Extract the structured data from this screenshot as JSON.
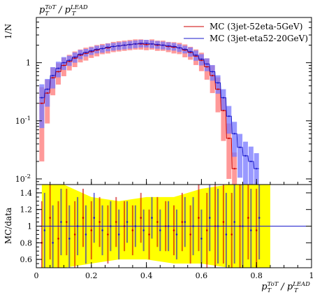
{
  "chart_data": [
    {
      "type": "line",
      "title": "p_T^ToT / p_T^LEAD",
      "ylabel": "1/N",
      "yscale": "log",
      "ylim": [
        0.008,
        6
      ],
      "xlim": [
        0,
        1
      ],
      "y_tick_labels": [
        "10^-2",
        "10^-1",
        "1"
      ],
      "legend_position": "top-right",
      "series": [
        {
          "name": "MC (3jet-52eta-5GeV)",
          "color": "#cc0000",
          "band_color": "#ff7777",
          "x": [
            0.02,
            0.04,
            0.06,
            0.08,
            0.1,
            0.12,
            0.14,
            0.16,
            0.18,
            0.2,
            0.22,
            0.24,
            0.26,
            0.28,
            0.3,
            0.32,
            0.34,
            0.36,
            0.38,
            0.4,
            0.42,
            0.44,
            0.46,
            0.48,
            0.5,
            0.52,
            0.54,
            0.56,
            0.58,
            0.6,
            0.62,
            0.64,
            0.66,
            0.68,
            0.7,
            0.72
          ],
          "y": [
            0.2,
            0.3,
            0.55,
            0.7,
            0.9,
            1.05,
            1.2,
            1.35,
            1.45,
            1.55,
            1.65,
            1.75,
            1.8,
            1.9,
            1.95,
            2.0,
            2.05,
            2.1,
            2.1,
            2.05,
            2.1,
            2.0,
            2.0,
            1.9,
            1.85,
            1.8,
            1.65,
            1.5,
            1.3,
            1.1,
            0.85,
            0.6,
            0.35,
            0.15,
            0.05,
            0.015
          ],
          "rel_err": [
            0.9,
            0.7,
            0.5,
            0.4,
            0.35,
            0.3,
            0.3,
            0.25,
            0.25,
            0.22,
            0.22,
            0.2,
            0.2,
            0.2,
            0.2,
            0.2,
            0.2,
            0.2,
            0.2,
            0.2,
            0.2,
            0.2,
            0.2,
            0.2,
            0.22,
            0.22,
            0.25,
            0.25,
            0.3,
            0.35,
            0.4,
            0.5,
            0.6,
            0.7,
            0.8,
            0.9
          ]
        },
        {
          "name": "MC (3jet-eta52-20GeV)",
          "color": "#1a1acc",
          "band_color": "#7777ff",
          "x": [
            0.02,
            0.04,
            0.06,
            0.08,
            0.1,
            0.12,
            0.14,
            0.16,
            0.18,
            0.2,
            0.22,
            0.24,
            0.26,
            0.28,
            0.3,
            0.32,
            0.34,
            0.36,
            0.38,
            0.4,
            0.42,
            0.44,
            0.46,
            0.48,
            0.5,
            0.52,
            0.54,
            0.56,
            0.58,
            0.6,
            0.62,
            0.64,
            0.66,
            0.68,
            0.7,
            0.72,
            0.74,
            0.76,
            0.78,
            0.8
          ],
          "y": [
            0.25,
            0.35,
            0.6,
            0.8,
            1.0,
            1.1,
            1.25,
            1.4,
            1.5,
            1.6,
            1.7,
            1.75,
            1.85,
            1.9,
            1.95,
            2.0,
            2.05,
            2.1,
            2.15,
            2.15,
            2.1,
            2.05,
            2.0,
            1.95,
            1.9,
            1.8,
            1.7,
            1.55,
            1.35,
            1.15,
            0.95,
            0.7,
            0.45,
            0.25,
            0.12,
            0.06,
            0.035,
            0.025,
            0.02,
            0.015
          ],
          "rel_err": [
            0.7,
            0.5,
            0.4,
            0.3,
            0.25,
            0.2,
            0.2,
            0.18,
            0.15,
            0.15,
            0.15,
            0.15,
            0.15,
            0.15,
            0.15,
            0.15,
            0.15,
            0.15,
            0.15,
            0.15,
            0.15,
            0.15,
            0.15,
            0.15,
            0.15,
            0.15,
            0.15,
            0.18,
            0.2,
            0.22,
            0.25,
            0.3,
            0.35,
            0.4,
            0.5,
            0.6,
            0.7,
            0.75,
            0.8,
            0.85
          ]
        }
      ]
    },
    {
      "type": "line",
      "ylabel": "MC/data",
      "xlabel": "p_T^ToT / p_T^LEAD",
      "xlim": [
        0,
        1
      ],
      "ylim": [
        0.5,
        1.5
      ],
      "x_ticks": [
        0,
        0.2,
        0.4,
        0.6,
        0.8,
        1
      ],
      "x_tick_labels": [
        "0",
        "0.2",
        "0.4",
        "0.6",
        "0.8",
        "1"
      ],
      "y_ticks": [
        0.6,
        0.8,
        1,
        1.2,
        1.4
      ],
      "y_tick_labels": [
        "0.6",
        "0.8",
        "1",
        "1.2",
        "1.4"
      ],
      "reference_line": 1,
      "data_band_color": "#ffff00",
      "data_band": {
        "x": [
          0.02,
          0.1,
          0.2,
          0.3,
          0.4,
          0.5,
          0.6,
          0.7,
          0.75,
          0.8,
          0.85
        ],
        "lo": [
          0.5,
          0.5,
          0.55,
          0.6,
          0.6,
          0.55,
          0.55,
          0.5,
          0.5,
          0.5,
          0.5
        ],
        "hi": [
          1.5,
          1.5,
          1.35,
          1.3,
          1.35,
          1.35,
          1.45,
          1.5,
          1.5,
          1.5,
          1.5
        ]
      },
      "series": [
        {
          "color": "#cc0000",
          "x": [
            0.02,
            0.05,
            0.08,
            0.11,
            0.14,
            0.17,
            0.2,
            0.23,
            0.26,
            0.29,
            0.32,
            0.35,
            0.38,
            0.41,
            0.44,
            0.47,
            0.5,
            0.53,
            0.56,
            0.59,
            0.62,
            0.65,
            0.68,
            0.71,
            0.74,
            0.77,
            0.8
          ],
          "y": [
            0.8,
            1.1,
            0.85,
            1.05,
            0.9,
            1.1,
            0.95,
            1.05,
            0.9,
            1.05,
            1.0,
            0.95,
            1.1,
            0.9,
            1.05,
            1.0,
            0.95,
            1.05,
            0.9,
            1.1,
            0.95,
            1.0,
            1.05,
            0.9,
            1.0,
            1.1,
            0.95
          ],
          "err": [
            0.5,
            0.5,
            0.45,
            0.4,
            0.4,
            0.35,
            0.35,
            0.3,
            0.35,
            0.3,
            0.3,
            0.3,
            0.3,
            0.3,
            0.3,
            0.3,
            0.3,
            0.35,
            0.35,
            0.4,
            0.45,
            0.5,
            0.5,
            0.5,
            0.5,
            0.5,
            0.5
          ]
        },
        {
          "color": "#1a1acc",
          "x": [
            0.03,
            0.06,
            0.09,
            0.12,
            0.15,
            0.18,
            0.21,
            0.24,
            0.27,
            0.3,
            0.33,
            0.36,
            0.39,
            0.42,
            0.45,
            0.48,
            0.51,
            0.54,
            0.57,
            0.6,
            0.63,
            0.66,
            0.69,
            0.72,
            0.75,
            0.78,
            0.81
          ],
          "y": [
            0.95,
            0.8,
            1.05,
            0.85,
            1.0,
            0.9,
            1.1,
            0.95,
            1.0,
            0.9,
            1.05,
            1.0,
            0.95,
            1.1,
            0.95,
            1.0,
            0.9,
            1.05,
            1.0,
            0.85,
            1.1,
            1.0,
            0.9,
            1.05,
            1.0,
            0.95,
            1.1
          ],
          "err": [
            0.45,
            0.45,
            0.4,
            0.4,
            0.35,
            0.35,
            0.3,
            0.3,
            0.3,
            0.3,
            0.25,
            0.25,
            0.25,
            0.25,
            0.25,
            0.3,
            0.3,
            0.3,
            0.35,
            0.35,
            0.4,
            0.45,
            0.5,
            0.5,
            0.5,
            0.5,
            0.5
          ]
        }
      ]
    }
  ]
}
